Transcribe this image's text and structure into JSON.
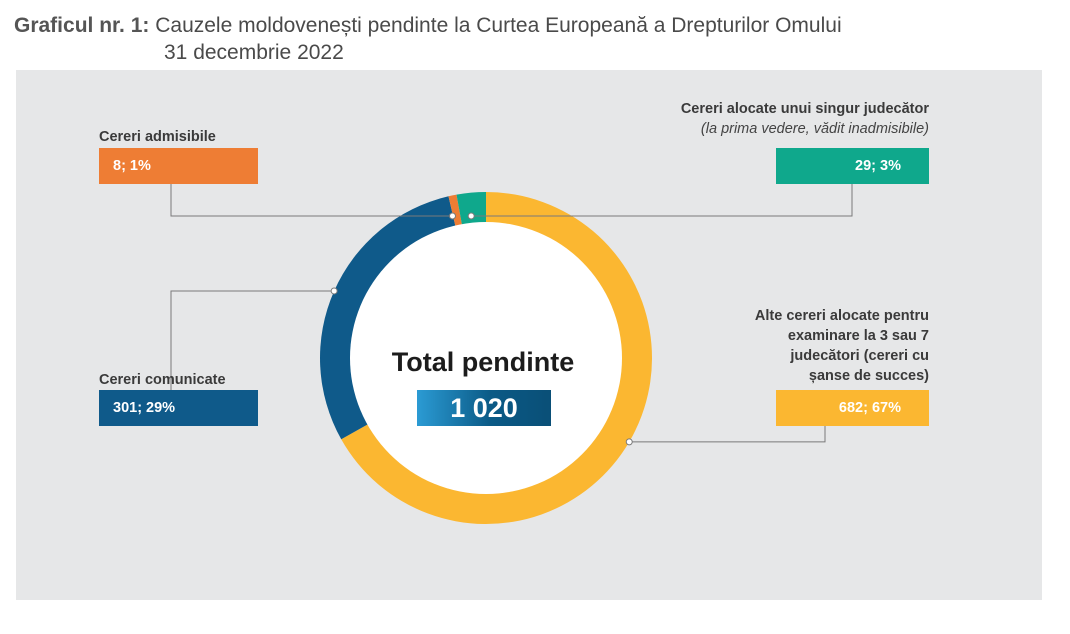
{
  "title": {
    "prefix": "Graficul nr. 1:",
    "line1": "Cauzele moldovenești pendinte  la Curtea Europeană a Drepturilor Omului",
    "line2": "31 decembrie 2022"
  },
  "center": {
    "label": "Total pendinte",
    "total": "1 020"
  },
  "labels": {
    "admissible": "Cereri admisibile",
    "admissible_value": "8; 1%",
    "single_judge": "Cereri alocate unui singur judecător",
    "single_judge_note": "(la prima vedere, vădit inadmisibile)",
    "single_judge_value": "29; 3%",
    "communicated": "Cereri comunicate",
    "communicated_value": "301; 29%",
    "other_lines": [
      "Alte cereri alocate pentru",
      "examinare la 3 sau 7",
      "judecători (cereri cu",
      "șanse de succes)"
    ],
    "other_value": "682; 67%"
  },
  "chart_data": {
    "type": "pie",
    "style": "donut",
    "title": "Cauzele moldovenești pendinte  la Curtea Europeană a Drepturilor Omului 31 decembrie 2022",
    "total": 1020,
    "series": [
      {
        "name": "Alte cereri alocate pentru examinare la 3 sau 7 judecători (cereri cu șanse de succes)",
        "value": 682,
        "percent": 67,
        "color": "#fbb731"
      },
      {
        "name": "Cereri comunicate",
        "value": 301,
        "percent": 29,
        "color": "#0f5a8a"
      },
      {
        "name": "Cereri admisibile",
        "value": 8,
        "percent": 1,
        "color": "#ee7d34"
      },
      {
        "name": "Cereri alocate unui singur judecător (la prima vedere, vădit inadmisibile)",
        "value": 29,
        "percent": 3,
        "color": "#0fa88c"
      }
    ]
  }
}
